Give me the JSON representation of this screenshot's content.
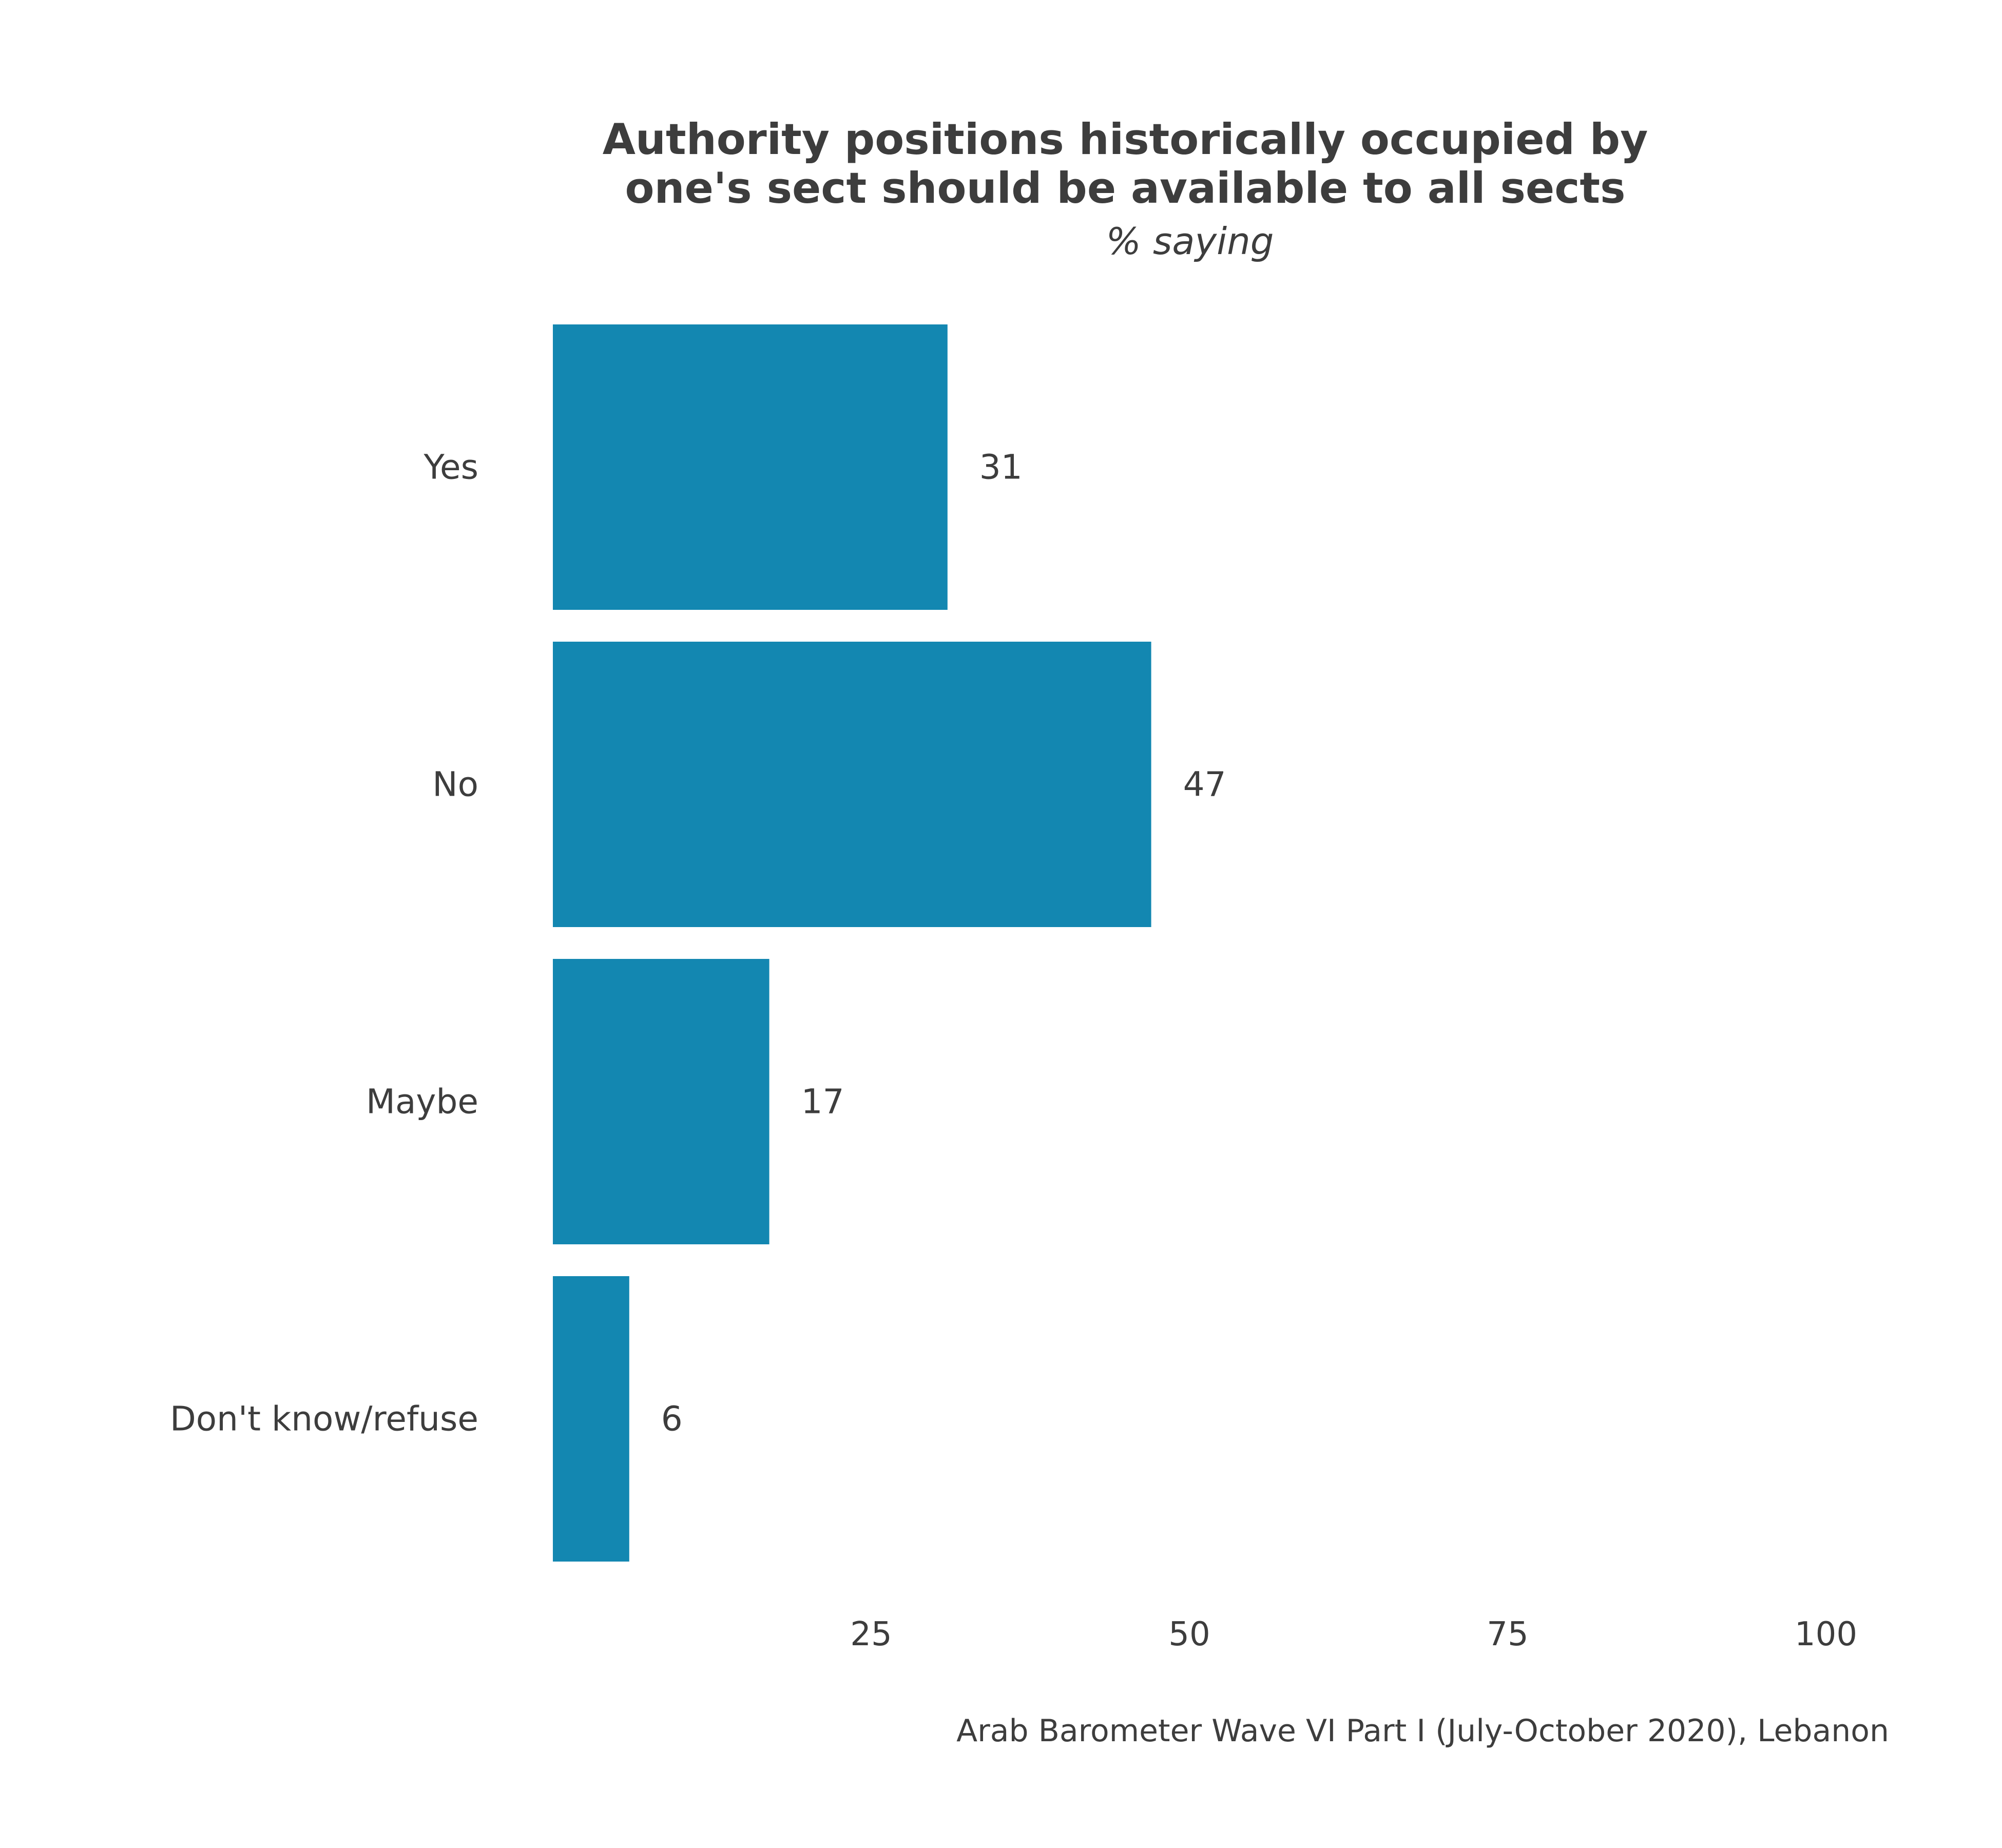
{
  "chart_data": {
    "type": "bar",
    "orientation": "horizontal",
    "title": "Authority positions historically occupied by one's sect should be available to all sects",
    "title_lines": [
      "Authority positions historically occupied by",
      "one's sect should be available to all sects"
    ],
    "subtitle": "% saying",
    "categories": [
      "Yes",
      "No",
      "Maybe",
      "Don't know/refuse"
    ],
    "values": [
      31,
      47,
      17,
      6
    ],
    "value_labels": [
      "31",
      "47",
      "17",
      "6"
    ],
    "xlim": [
      0,
      100
    ],
    "xticks": [
      25,
      50,
      75,
      100
    ],
    "xtick_labels": [
      "25",
      "50",
      "75",
      "100"
    ],
    "caption": "Arab Barometer Wave VI Part I (July-October 2020), Lebanon",
    "bar_color": "#1387b1",
    "grid": false,
    "legend": "none"
  }
}
